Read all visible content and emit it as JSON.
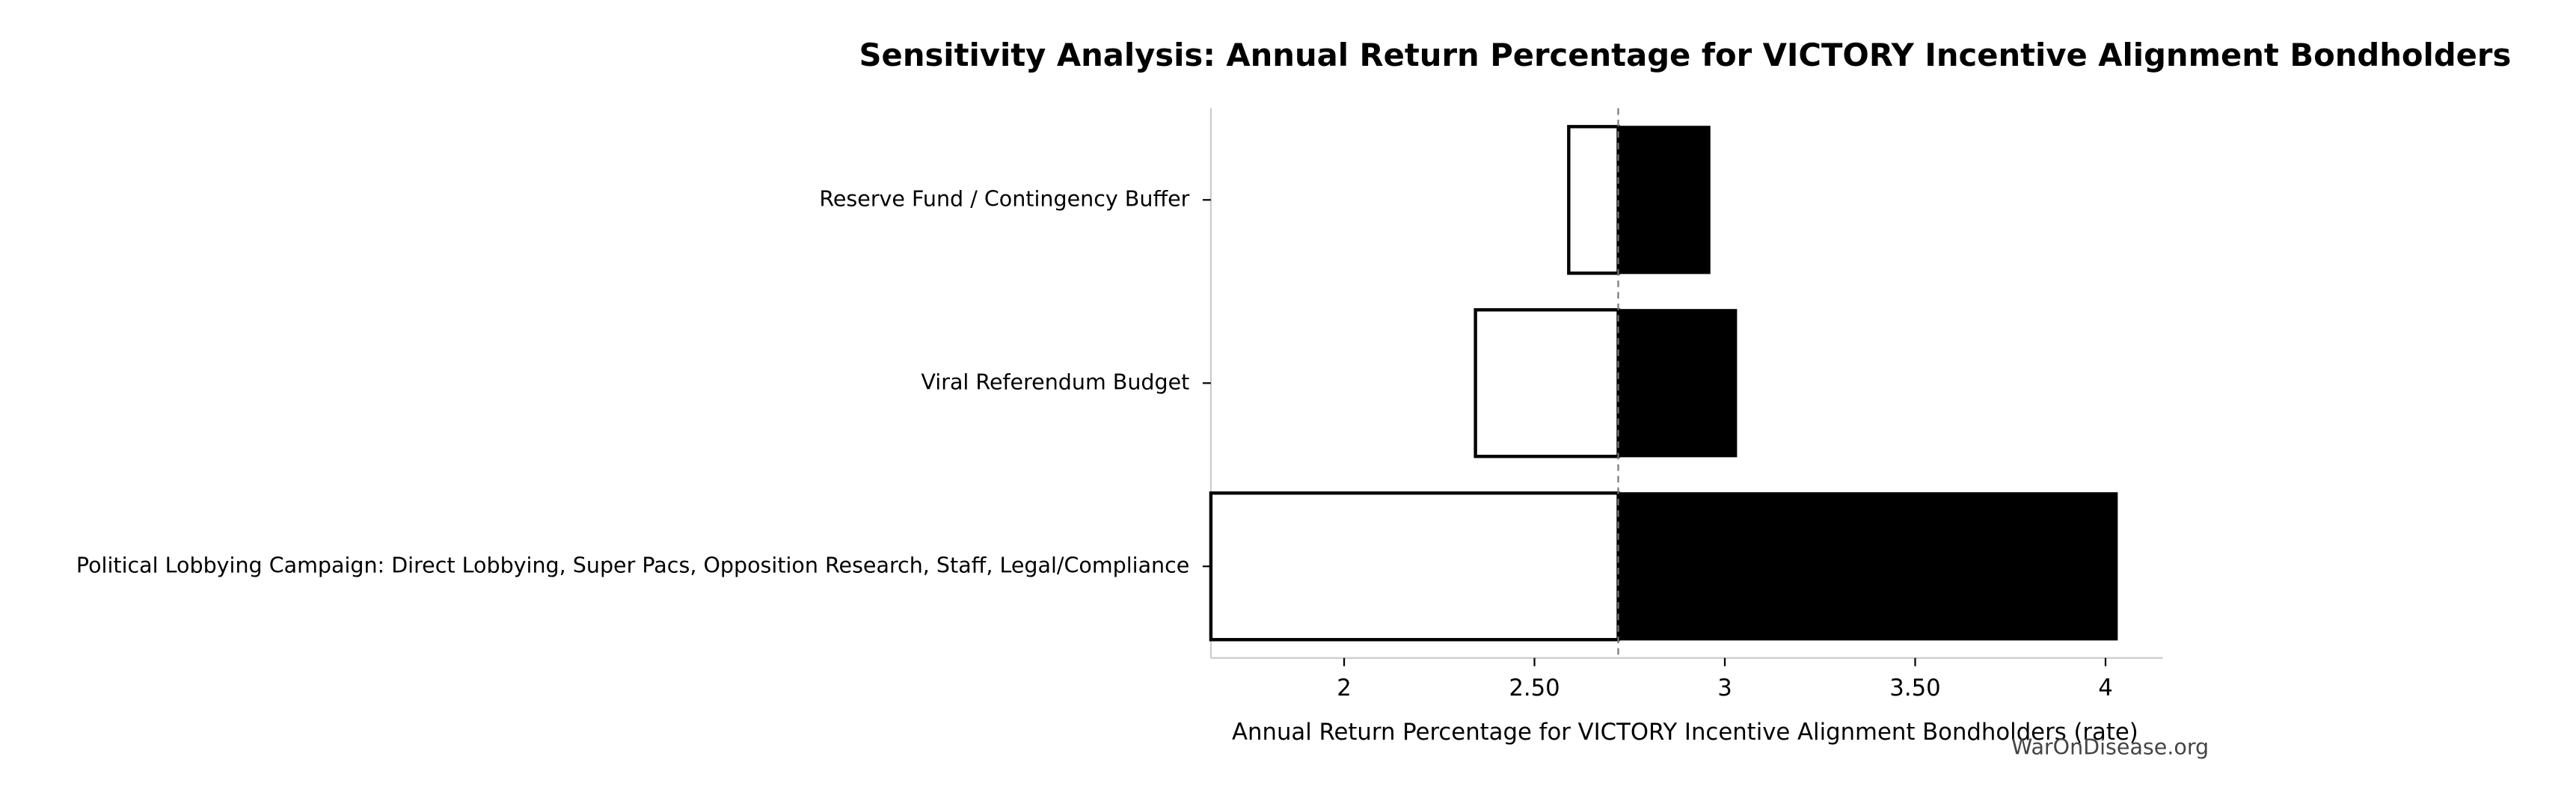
{
  "chart_data": {
    "type": "tornado",
    "title": "Sensitivity Analysis: Annual Return Percentage for VICTORY Incentive Alignment Bondholders",
    "xlabel": "Annual Return Percentage for VICTORY Incentive Alignment Bondholders (rate)",
    "watermark": "WarOnDisease.org",
    "categories": [
      "Reserve Fund / Contingency Buffer",
      "Viral Referendum Budget",
      "Political Lobbying Campaign: Direct Lobbying, Super Pacs, Opposition Research, Staff, Legal/Compliance"
    ],
    "low": [
      2.59,
      2.345,
      1.65
    ],
    "high": [
      2.96,
      3.03,
      4.03
    ],
    "baseline": 2.72,
    "low_color": "#ffffff",
    "high_color": "#000000",
    "xlim": [
      1.65,
      4.15
    ],
    "xticks": [
      2,
      {
        "value": 2.5,
        "label": "2.50"
      },
      3,
      {
        "value": 3.5,
        "label": "3.50"
      },
      4
    ]
  }
}
